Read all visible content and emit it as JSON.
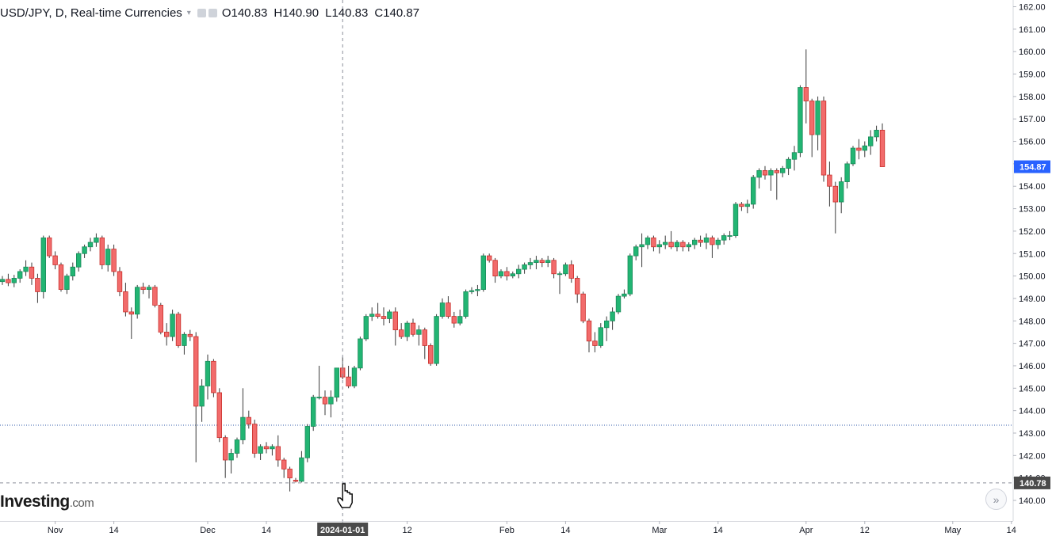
{
  "header": {
    "symbol_title": "USD/JPY, D, Real-time Currencies",
    "caret": "▾",
    "ohlc": [
      {
        "label": "O",
        "value": "140.83"
      },
      {
        "label": "H",
        "value": "140.90"
      },
      {
        "label": "L",
        "value": "140.83"
      },
      {
        "label": "C",
        "value": "140.87"
      }
    ]
  },
  "logo": {
    "brand": "Investing",
    "suffix": ".com"
  },
  "scroll_button": {
    "icon": "double-chevron-right-icon",
    "glyph": "»"
  },
  "colors": {
    "up": "#26a69a",
    "up_fill": "#22b573",
    "down": "#ef5350",
    "down_fill": "#f26b6b",
    "price_label_bg": "#2962ff",
    "crosshair_label_bg": "#4a4a4a",
    "axis_text": "#131722",
    "hline_blue": "#2f5aa8"
  },
  "chart_data": {
    "type": "candlestick",
    "instrument": "USD/JPY",
    "interval": "D",
    "y_ticks": [
      "162.00",
      "161.00",
      "160.00",
      "159.00",
      "158.00",
      "157.00",
      "156.00",
      "155.00",
      "154.00",
      "153.00",
      "152.00",
      "151.00",
      "150.00",
      "149.00",
      "148.00",
      "147.00",
      "146.00",
      "145.00",
      "144.00",
      "143.00",
      "142.00",
      "141.00",
      "140.00"
    ],
    "ylim": [
      139.2,
      162.25
    ],
    "x_ticks": [
      "Nov",
      "14",
      "Dec",
      "14",
      "2024-01-01",
      "12",
      "Feb",
      "14",
      "Mar",
      "14",
      "Apr",
      "12",
      "May",
      "14"
    ],
    "x_tick_candle_index": [
      9,
      19,
      35,
      45,
      58,
      69,
      86,
      96,
      112,
      122,
      137,
      147,
      162,
      172
    ],
    "last_price_label": "154.87",
    "crosshair_price_label": "140.78",
    "crosshair_date_label": "2024-01-01",
    "crosshair_candle_index": 58,
    "horizontal_line_price": 143.35,
    "ohlc": [
      [
        149.75,
        150.0,
        149.6,
        149.85
      ],
      [
        149.85,
        150.1,
        149.55,
        149.7
      ],
      [
        149.7,
        150.05,
        149.5,
        149.9
      ],
      [
        149.9,
        150.3,
        149.7,
        150.2
      ],
      [
        150.2,
        150.7,
        150.0,
        150.4
      ],
      [
        150.4,
        150.6,
        149.6,
        149.9
      ],
      [
        149.9,
        150.1,
        148.8,
        149.3
      ],
      [
        149.3,
        151.8,
        149.0,
        151.7
      ],
      [
        151.7,
        151.8,
        150.8,
        150.9
      ],
      [
        150.9,
        151.1,
        150.3,
        150.5
      ],
      [
        150.5,
        150.6,
        149.3,
        149.4
      ],
      [
        149.4,
        150.1,
        149.2,
        150.0
      ],
      [
        150.0,
        150.6,
        149.8,
        150.4
      ],
      [
        150.4,
        151.1,
        150.2,
        151.0
      ],
      [
        151.0,
        151.4,
        150.8,
        151.3
      ],
      [
        151.3,
        151.7,
        151.1,
        151.5
      ],
      [
        151.5,
        151.9,
        151.3,
        151.7
      ],
      [
        151.7,
        151.8,
        150.3,
        150.5
      ],
      [
        150.5,
        151.4,
        150.2,
        151.2
      ],
      [
        151.2,
        151.4,
        150.0,
        150.2
      ],
      [
        150.2,
        150.4,
        149.1,
        149.3
      ],
      [
        149.3,
        149.7,
        148.2,
        148.4
      ],
      [
        148.4,
        148.6,
        147.2,
        148.3
      ],
      [
        148.3,
        149.6,
        148.1,
        149.5
      ],
      [
        149.5,
        149.7,
        149.2,
        149.4
      ],
      [
        149.4,
        149.6,
        149.0,
        149.5
      ],
      [
        149.5,
        149.6,
        148.6,
        148.7
      ],
      [
        148.7,
        148.8,
        147.4,
        147.5
      ],
      [
        147.5,
        147.9,
        146.9,
        147.3
      ],
      [
        147.3,
        148.5,
        147.1,
        148.3
      ],
      [
        148.3,
        148.4,
        146.8,
        146.9
      ],
      [
        146.9,
        147.5,
        146.5,
        147.4
      ],
      [
        147.4,
        147.6,
        147.1,
        147.3
      ],
      [
        147.3,
        147.5,
        141.7,
        144.2
      ],
      [
        144.2,
        145.4,
        143.5,
        145.1
      ],
      [
        145.1,
        146.5,
        144.5,
        146.2
      ],
      [
        146.2,
        146.3,
        144.6,
        144.8
      ],
      [
        144.8,
        145.0,
        142.6,
        142.8
      ],
      [
        142.8,
        142.9,
        141.0,
        141.8
      ],
      [
        141.8,
        142.3,
        141.2,
        142.1
      ],
      [
        142.1,
        142.8,
        141.9,
        142.7
      ],
      [
        142.7,
        145.0,
        142.5,
        143.7
      ],
      [
        143.7,
        144.0,
        143.2,
        143.4
      ],
      [
        143.4,
        143.6,
        141.9,
        142.1
      ],
      [
        142.1,
        142.5,
        141.8,
        142.4
      ],
      [
        142.4,
        142.6,
        142.1,
        142.3
      ],
      [
        142.3,
        142.5,
        142.0,
        142.4
      ],
      [
        142.4,
        142.9,
        141.5,
        141.8
      ],
      [
        141.8,
        141.9,
        141.0,
        141.4
      ],
      [
        141.4,
        141.5,
        140.4,
        141.0
      ],
      [
        140.9,
        141.0,
        140.8,
        140.85
      ],
      [
        140.85,
        142.2,
        140.8,
        141.9
      ],
      [
        141.9,
        143.4,
        141.7,
        143.3
      ],
      [
        143.3,
        144.7,
        143.1,
        144.6
      ],
      [
        144.6,
        146.0,
        144.5,
        144.6
      ],
      [
        144.6,
        144.9,
        143.8,
        144.3
      ],
      [
        144.3,
        144.9,
        143.7,
        144.6
      ],
      [
        144.6,
        145.9,
        144.4,
        145.9
      ],
      [
        145.9,
        146.4,
        145.4,
        145.5
      ],
      [
        145.5,
        146.0,
        145.0,
        145.1
      ],
      [
        145.1,
        146.0,
        145.0,
        145.9
      ],
      [
        145.9,
        147.3,
        145.8,
        147.2
      ],
      [
        147.2,
        148.3,
        147.1,
        148.2
      ],
      [
        148.2,
        148.6,
        148.0,
        148.3
      ],
      [
        148.3,
        148.8,
        148.1,
        148.2
      ],
      [
        148.2,
        148.6,
        147.8,
        148.1
      ],
      [
        148.1,
        148.5,
        147.9,
        148.4
      ],
      [
        148.4,
        148.6,
        146.9,
        147.6
      ],
      [
        147.6,
        147.9,
        147.2,
        147.3
      ],
      [
        147.3,
        148.0,
        147.1,
        147.9
      ],
      [
        147.9,
        148.1,
        147.3,
        147.4
      ],
      [
        147.4,
        147.8,
        146.9,
        147.6
      ],
      [
        147.6,
        147.7,
        146.3,
        146.9
      ],
      [
        146.9,
        147.0,
        146.0,
        146.1
      ],
      [
        146.1,
        148.3,
        146.0,
        148.2
      ],
      [
        148.2,
        149.0,
        148.1,
        148.8
      ],
      [
        148.8,
        149.1,
        148.1,
        148.2
      ],
      [
        148.2,
        148.4,
        147.7,
        147.9
      ],
      [
        147.9,
        148.5,
        147.8,
        148.2
      ],
      [
        148.2,
        149.4,
        148.1,
        149.3
      ],
      [
        149.3,
        149.5,
        149.2,
        149.35
      ],
      [
        149.35,
        149.6,
        149.1,
        149.4
      ],
      [
        149.4,
        151.0,
        149.3,
        150.9
      ],
      [
        150.9,
        151.0,
        150.6,
        150.7
      ],
      [
        150.7,
        150.8,
        149.7,
        150.0
      ],
      [
        150.0,
        150.3,
        149.9,
        150.2
      ],
      [
        150.2,
        150.4,
        149.8,
        150.0
      ],
      [
        150.0,
        150.2,
        149.9,
        150.1
      ],
      [
        150.1,
        150.5,
        149.9,
        150.3
      ],
      [
        150.3,
        150.6,
        150.1,
        150.5
      ],
      [
        150.5,
        150.8,
        150.3,
        150.6
      ],
      [
        150.6,
        150.9,
        150.3,
        150.7
      ],
      [
        150.7,
        150.8,
        150.4,
        150.6
      ],
      [
        150.6,
        150.9,
        150.4,
        150.7
      ],
      [
        150.7,
        150.8,
        149.9,
        150.1
      ],
      [
        150.1,
        150.2,
        149.2,
        150.1
      ],
      [
        150.1,
        150.6,
        150.0,
        150.5
      ],
      [
        150.5,
        150.7,
        149.7,
        149.9
      ],
      [
        149.9,
        150.0,
        148.8,
        149.2
      ],
      [
        149.2,
        149.3,
        147.9,
        148.0
      ],
      [
        148.0,
        148.1,
        146.6,
        147.1
      ],
      [
        147.1,
        147.5,
        146.6,
        146.9
      ],
      [
        146.9,
        147.9,
        146.8,
        147.7
      ],
      [
        147.7,
        148.2,
        147.1,
        148.0
      ],
      [
        148.0,
        148.6,
        147.6,
        148.4
      ],
      [
        148.4,
        149.2,
        148.3,
        149.1
      ],
      [
        149.1,
        149.4,
        149.0,
        149.2
      ],
      [
        149.2,
        151.0,
        149.1,
        150.9
      ],
      [
        150.9,
        151.4,
        150.7,
        151.3
      ],
      [
        151.3,
        151.9,
        150.4,
        151.4
      ],
      [
        151.4,
        151.8,
        151.2,
        151.7
      ],
      [
        151.7,
        151.8,
        151.1,
        151.3
      ],
      [
        151.3,
        151.6,
        151.0,
        151.4
      ],
      [
        151.4,
        151.8,
        151.2,
        151.5
      ],
      [
        151.5,
        152.0,
        151.2,
        151.3
      ],
      [
        151.3,
        151.6,
        151.1,
        151.5
      ],
      [
        151.5,
        151.6,
        151.1,
        151.3
      ],
      [
        151.3,
        151.5,
        151.1,
        151.4
      ],
      [
        151.4,
        151.7,
        151.2,
        151.6
      ],
      [
        151.6,
        151.8,
        151.3,
        151.5
      ],
      [
        151.5,
        151.9,
        151.2,
        151.7
      ],
      [
        151.7,
        151.8,
        150.8,
        151.4
      ],
      [
        151.4,
        151.7,
        151.2,
        151.6
      ],
      [
        151.6,
        151.9,
        151.4,
        151.8
      ],
      [
        151.8,
        152.0,
        151.6,
        151.8
      ],
      [
        151.8,
        153.3,
        151.7,
        153.2
      ],
      [
        153.2,
        153.3,
        152.9,
        153.1
      ],
      [
        153.1,
        153.4,
        152.8,
        153.2
      ],
      [
        153.2,
        154.5,
        153.0,
        154.4
      ],
      [
        154.4,
        154.8,
        153.9,
        154.7
      ],
      [
        154.7,
        154.9,
        154.3,
        154.5
      ],
      [
        154.5,
        154.8,
        153.8,
        154.7
      ],
      [
        154.7,
        154.8,
        153.4,
        154.6
      ],
      [
        154.6,
        154.9,
        154.4,
        154.8
      ],
      [
        154.8,
        155.3,
        154.5,
        155.2
      ],
      [
        155.2,
        155.8,
        154.7,
        155.5
      ],
      [
        155.5,
        158.5,
        155.3,
        158.4
      ],
      [
        158.4,
        160.1,
        156.8,
        157.8
      ],
      [
        157.8,
        157.9,
        155.3,
        156.3
      ],
      [
        156.3,
        158.0,
        155.6,
        157.8
      ],
      [
        157.8,
        158.0,
        154.2,
        154.5
      ],
      [
        154.5,
        155.1,
        153.1,
        154.0
      ],
      [
        154.0,
        154.2,
        151.9,
        153.3
      ],
      [
        153.3,
        154.4,
        152.8,
        154.2
      ],
      [
        154.2,
        155.1,
        153.9,
        155.0
      ],
      [
        155.0,
        155.8,
        154.9,
        155.7
      ],
      [
        155.7,
        156.1,
        155.2,
        155.6
      ],
      [
        155.6,
        156.0,
        155.3,
        155.8
      ],
      [
        155.8,
        156.5,
        155.4,
        156.2
      ],
      [
        156.2,
        156.7,
        156.0,
        156.5
      ],
      [
        156.5,
        156.8,
        155.0,
        154.87
      ]
    ]
  }
}
